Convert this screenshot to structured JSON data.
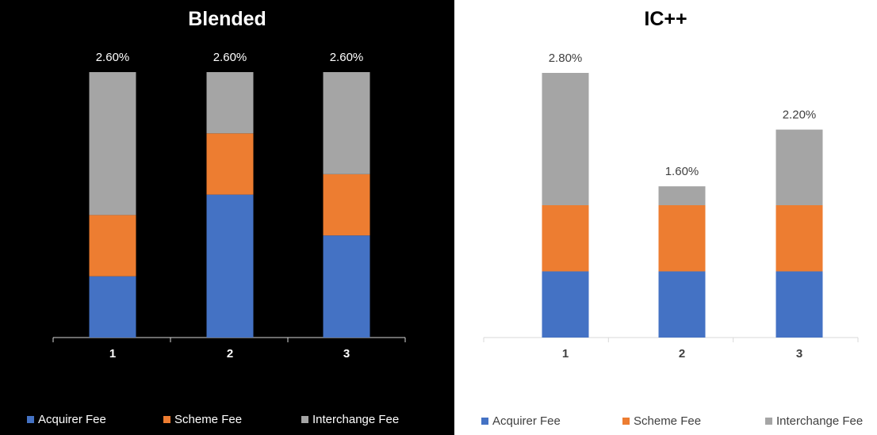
{
  "chart_data": [
    {
      "type": "bar",
      "stacked": true,
      "title": "Blended",
      "background": "#000000",
      "text_color": "#ffffff",
      "categories": [
        "1",
        "2",
        "3"
      ],
      "series": [
        {
          "name": "Acquirer Fee",
          "color": "#4472c4",
          "values": [
            0.6,
            1.4,
            1.0
          ]
        },
        {
          "name": "Scheme Fee",
          "color": "#ed7d31",
          "values": [
            0.6,
            0.6,
            0.6
          ]
        },
        {
          "name": "Interchange Fee",
          "color": "#a5a5a5",
          "values": [
            1.4,
            0.6,
            1.0
          ]
        }
      ],
      "totals": [
        "2.60%",
        "2.60%",
        "2.60%"
      ],
      "ylim": [
        0,
        2.6
      ],
      "legend": "bottom",
      "grid": false
    },
    {
      "type": "bar",
      "stacked": true,
      "title": "IC++",
      "background": "#ffffff",
      "text_color": "#000000",
      "categories": [
        "1",
        "2",
        "3"
      ],
      "series": [
        {
          "name": "Acquirer Fee",
          "color": "#4472c4",
          "values": [
            0.7,
            0.7,
            0.7
          ]
        },
        {
          "name": "Scheme Fee",
          "color": "#ed7d31",
          "values": [
            0.7,
            0.7,
            0.7
          ]
        },
        {
          "name": "Interchange Fee",
          "color": "#a5a5a5",
          "values": [
            1.4,
            0.2,
            0.8
          ]
        }
      ],
      "totals": [
        "2.80%",
        "1.60%",
        "2.20%"
      ],
      "ylim": [
        0,
        2.8
      ],
      "legend": "bottom",
      "grid": false
    }
  ]
}
